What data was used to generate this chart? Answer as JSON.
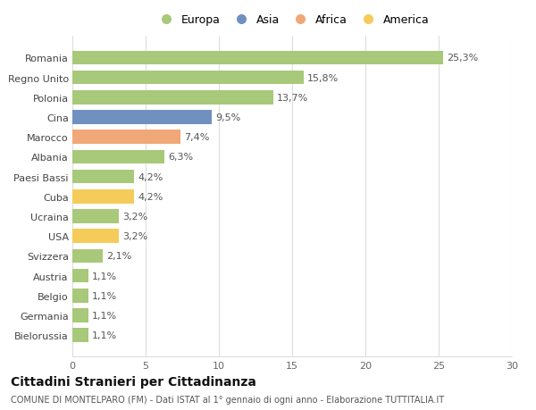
{
  "categories": [
    "Bielorussia",
    "Germania",
    "Belgio",
    "Austria",
    "Svizzera",
    "USA",
    "Ucraina",
    "Cuba",
    "Paesi Bassi",
    "Albania",
    "Marocco",
    "Cina",
    "Polonia",
    "Regno Unito",
    "Romania"
  ],
  "values": [
    1.1,
    1.1,
    1.1,
    1.1,
    2.1,
    3.2,
    3.2,
    4.2,
    4.2,
    6.3,
    7.4,
    9.5,
    13.7,
    15.8,
    25.3
  ],
  "colors": [
    "#a8c87a",
    "#a8c87a",
    "#a8c87a",
    "#a8c87a",
    "#a8c87a",
    "#f5cc5a",
    "#a8c87a",
    "#f5cc5a",
    "#a8c87a",
    "#a8c87a",
    "#f0a878",
    "#7090c0",
    "#a8c87a",
    "#a8c87a",
    "#a8c87a"
  ],
  "labels": [
    "1,1%",
    "1,1%",
    "1,1%",
    "1,1%",
    "2,1%",
    "3,2%",
    "3,2%",
    "4,2%",
    "4,2%",
    "6,3%",
    "7,4%",
    "9,5%",
    "13,7%",
    "15,8%",
    "25,3%"
  ],
  "legend": [
    {
      "label": "Europa",
      "color": "#a8c87a"
    },
    {
      "label": "Asia",
      "color": "#7090c0"
    },
    {
      "label": "Africa",
      "color": "#f0a878"
    },
    {
      "label": "America",
      "color": "#f5cc5a"
    }
  ],
  "title": "Cittadini Stranieri per Cittadinanza",
  "subtitle": "COMUNE DI MONTELPARO (FM) - Dati ISTAT al 1° gennaio di ogni anno - Elaborazione TUTTITALIA.IT",
  "xlim": [
    0,
    30
  ],
  "xticks": [
    0,
    5,
    10,
    15,
    20,
    25,
    30
  ],
  "bg_color": "#ffffff",
  "grid_color": "#dddddd",
  "bar_height": 0.7,
  "label_fontsize": 8,
  "tick_fontsize": 8,
  "title_fontsize": 10,
  "subtitle_fontsize": 7
}
